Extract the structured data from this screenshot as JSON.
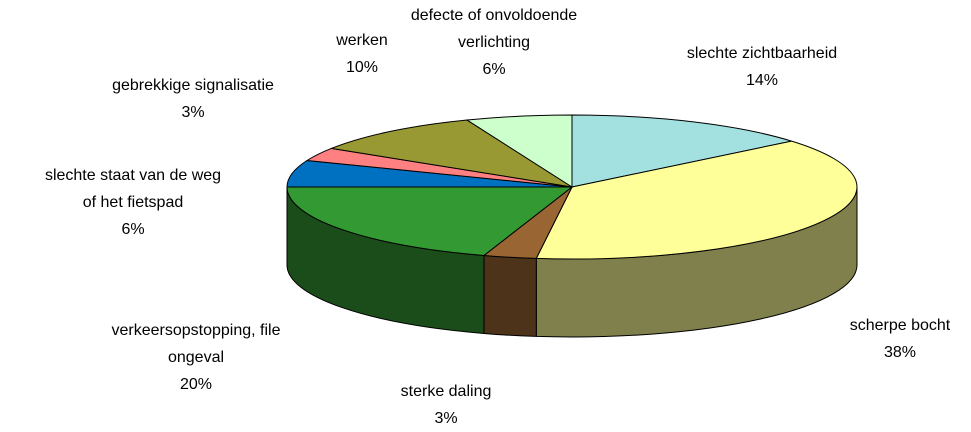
{
  "chart_data": {
    "type": "pie3d",
    "categories": [
      "slechte zichtbaarheid",
      "scherpe bocht",
      "sterke daling",
      "verkeersopstopping, file\nongeval",
      "slechte staat van de weg\nof het fietspad",
      "gebrekkige signalisatie",
      "werken",
      "defecte of onvoldoende\nverlichting"
    ],
    "values": [
      14,
      38,
      3,
      20,
      6,
      3,
      10,
      6
    ],
    "value_labels": [
      "14%",
      "38%",
      "3%",
      "20%",
      "6%",
      "3%",
      "10%",
      "6%"
    ],
    "colors": [
      "#a3e0e0",
      "#ffff99",
      "#996633",
      "#339933",
      "#0070c0",
      "#ff8080",
      "#999933",
      "#ccffcc"
    ]
  }
}
